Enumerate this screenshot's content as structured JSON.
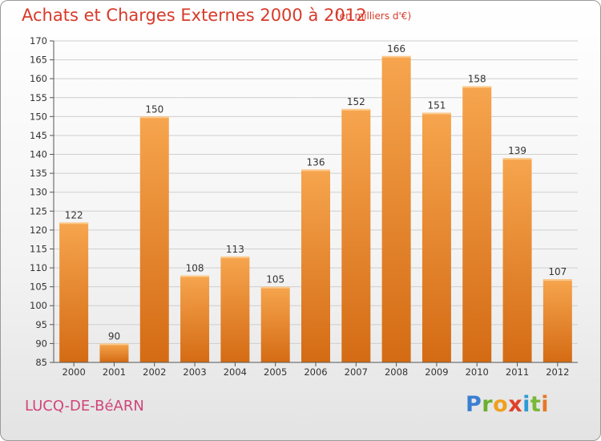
{
  "header": {
    "title": "Achats et Charges Externes 2000 à 2012",
    "subtitle": "(en milliers d'€)"
  },
  "footer": {
    "place": "LUCQ-DE-BéARN",
    "logo": "Proxiti"
  },
  "colors": {
    "bar_light": "#f6a54e",
    "bar_dark": "#d46b14",
    "title": "#d83a2a",
    "place": "#d0457a"
  },
  "chart_data": {
    "type": "bar",
    "categories": [
      "2000",
      "2001",
      "2002",
      "2003",
      "2004",
      "2005",
      "2006",
      "2007",
      "2008",
      "2009",
      "2010",
      "2011",
      "2012"
    ],
    "values": [
      122,
      90,
      150,
      108,
      113,
      105,
      136,
      152,
      166,
      151,
      158,
      139,
      107
    ],
    "ylim": [
      85,
      170
    ],
    "yticks": [
      85,
      90,
      95,
      100,
      105,
      110,
      115,
      120,
      125,
      130,
      135,
      140,
      145,
      150,
      155,
      160,
      165,
      170
    ],
    "grid": true
  }
}
